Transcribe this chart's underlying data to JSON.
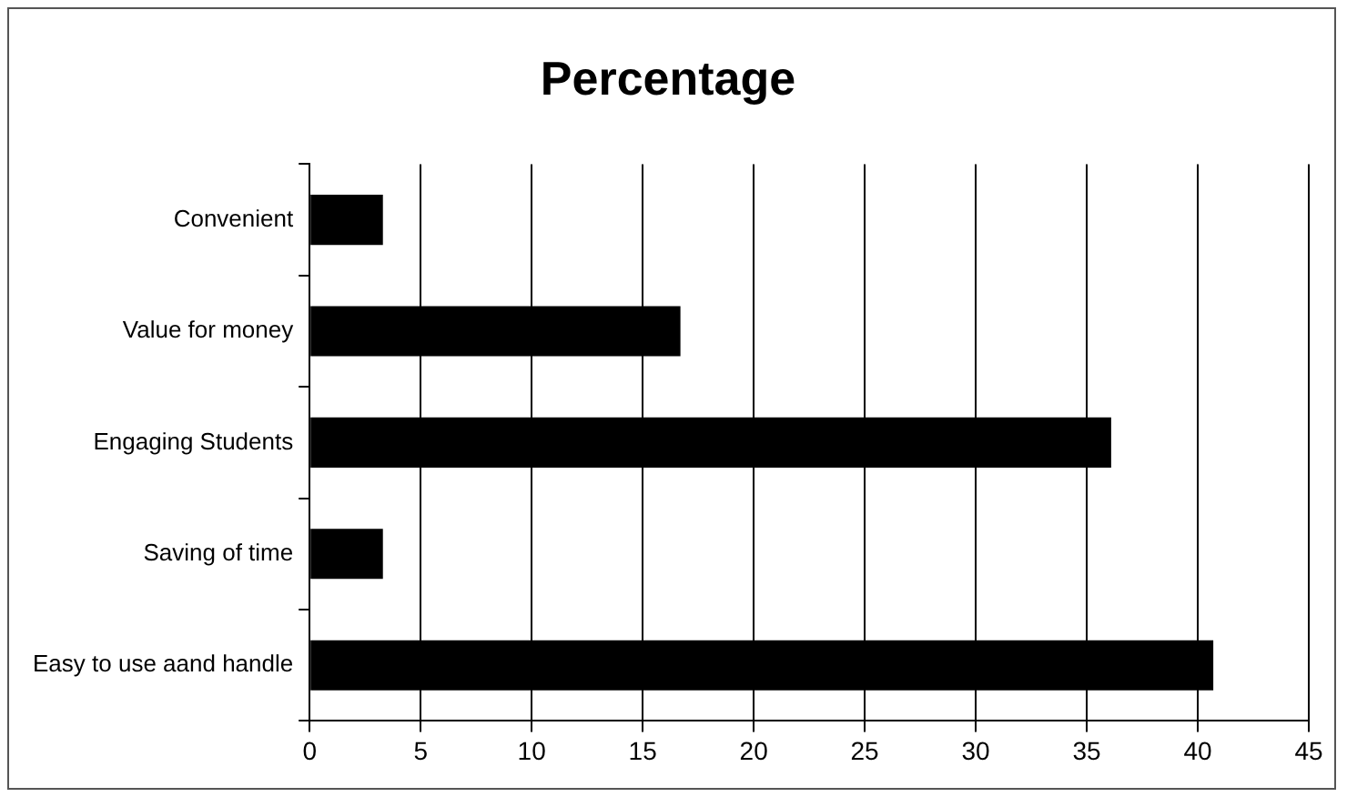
{
  "chart_data": {
    "type": "bar",
    "orientation": "horizontal",
    "title": "Percentage",
    "categories": [
      "Convenient",
      "Value for money",
      "Engaging Students",
      "Saving of time",
      "Easy to use aand handle"
    ],
    "values": [
      3.3,
      16.7,
      36.1,
      3.3,
      40.7
    ],
    "color": "#000000",
    "xlim": [
      0,
      45
    ],
    "xticks": [
      0,
      5,
      10,
      15,
      20,
      25,
      30,
      35,
      40,
      45
    ],
    "grid": "x",
    "legend": false
  }
}
